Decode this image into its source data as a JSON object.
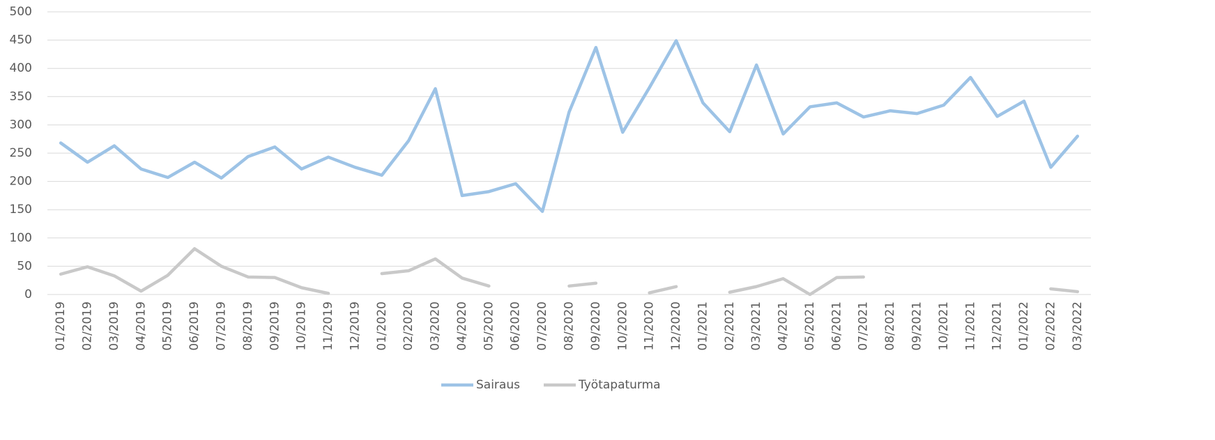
{
  "chart_data": {
    "type": "line",
    "categories": [
      "01/2019",
      "02/2019",
      "03/2019",
      "04/2019",
      "05/2019",
      "06/2019",
      "07/2019",
      "08/2019",
      "09/2019",
      "10/2019",
      "11/2019",
      "12/2019",
      "01/2020",
      "02/2020",
      "03/2020",
      "04/2020",
      "05/2020",
      "06/2020",
      "07/2020",
      "08/2020",
      "09/2020",
      "10/2020",
      "11/2020",
      "12/2020",
      "01/2021",
      "02/2021",
      "03/2021",
      "04/2021",
      "05/2021",
      "06/2021",
      "07/2021",
      "08/2021",
      "09/2021",
      "10/2021",
      "11/2021",
      "12/2021",
      "01/2022",
      "02/2022",
      "03/2022"
    ],
    "series": [
      {
        "name": "Sairaus",
        "color": "#9dc3e6",
        "values": [
          268,
          234,
          263,
          222,
          207,
          234,
          206,
          244,
          261,
          222,
          243,
          225,
          211,
          272,
          364,
          175,
          182,
          196,
          147,
          323,
          437,
          287,
          366,
          449,
          339,
          288,
          406,
          284,
          332,
          339,
          314,
          325,
          320,
          335,
          384,
          315,
          342,
          225,
          280
        ]
      },
      {
        "name": "Työtapaturma",
        "color": "#c9c9c9",
        "values": [
          36,
          49,
          33,
          6,
          34,
          81,
          50,
          31,
          30,
          12,
          2,
          null,
          37,
          42,
          63,
          29,
          15,
          null,
          null,
          15,
          20,
          null,
          3,
          14,
          null,
          4,
          14,
          28,
          0,
          30,
          31,
          null,
          null,
          null,
          null,
          null,
          null,
          10,
          5
        ]
      }
    ],
    "ylim": [
      0,
      500
    ],
    "yticks": [
      0,
      50,
      100,
      150,
      200,
      250,
      300,
      350,
      400,
      450,
      500
    ],
    "grid": true,
    "legend": "bottom"
  }
}
